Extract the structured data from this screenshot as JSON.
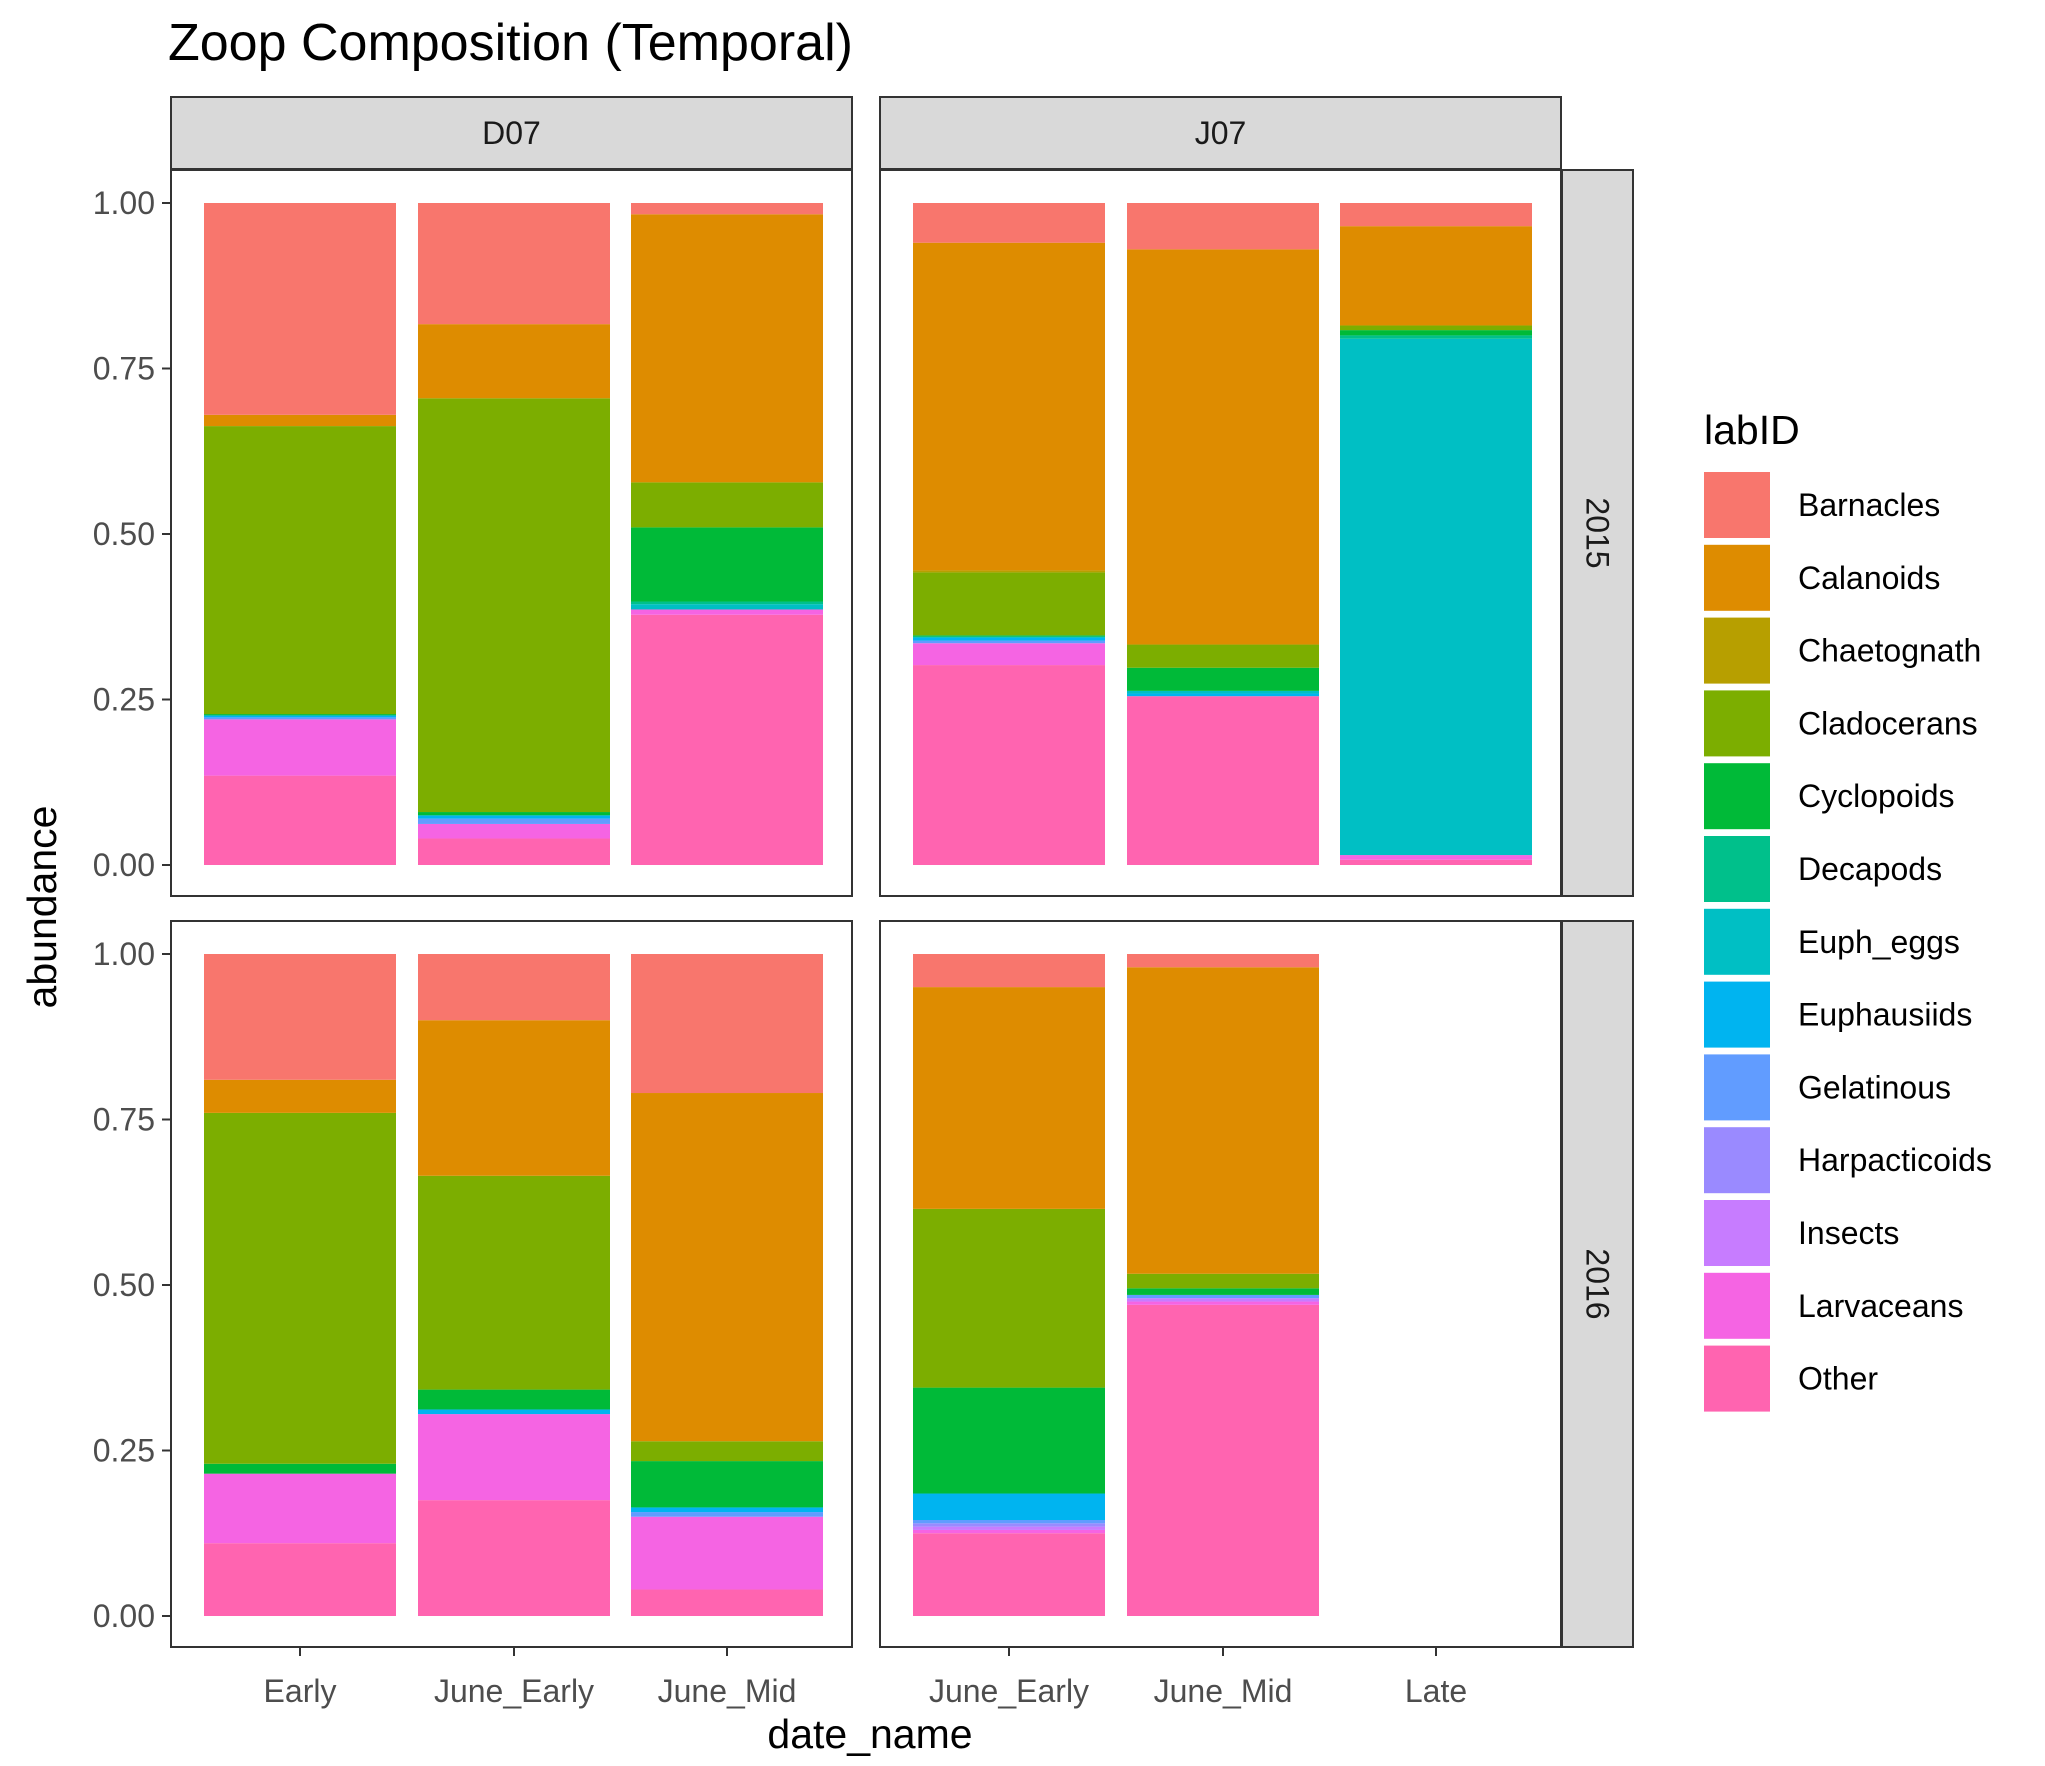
{
  "chart_data": {
    "type": "bar",
    "stacked": true,
    "title": "Zoop Composition (Temporal)",
    "xlabel": "date_name",
    "ylabel": "abundance",
    "ylim": [
      0,
      1
    ],
    "yticks": [
      "0.00",
      "0.25",
      "0.50",
      "0.75",
      "1.00"
    ],
    "facet_columns": [
      "D07",
      "J07"
    ],
    "facet_rows": [
      "2015",
      "2016"
    ],
    "legend": {
      "title": "labID",
      "position": "right",
      "entries": [
        {
          "name": "Barnacles",
          "color": "#F8766D"
        },
        {
          "name": "Calanoids",
          "color": "#DE8C00"
        },
        {
          "name": "Chaetognath",
          "color": "#B79F00"
        },
        {
          "name": "Cladocerans",
          "color": "#7CAE00"
        },
        {
          "name": "Cyclopoids",
          "color": "#00BA38"
        },
        {
          "name": "Decapods",
          "color": "#00C08B"
        },
        {
          "name": "Euph_eggs",
          "color": "#00BFC4"
        },
        {
          "name": "Euphausiids",
          "color": "#00B4F0"
        },
        {
          "name": "Gelatinous",
          "color": "#619CFF"
        },
        {
          "name": "Harpacticoids",
          "color": "#9A8AFF"
        },
        {
          "name": "Insects",
          "color": "#C77CFF"
        },
        {
          "name": "Larvaceans",
          "color": "#F564E3"
        },
        {
          "name": "Other",
          "color": "#FF64B0"
        }
      ]
    },
    "panels": [
      {
        "column": "D07",
        "row": "2015",
        "categories": [
          "Early",
          "June_Early",
          "June_Mid"
        ],
        "bars": [
          {
            "category": "Early",
            "segments": [
              {
                "name": "Other",
                "value": 0.135
              },
              {
                "name": "Larvaceans",
                "value": 0.085
              },
              {
                "name": "Gelatinous",
                "value": 0.003
              },
              {
                "name": "Euphausiids",
                "value": 0.003
              },
              {
                "name": "Cyclopoids",
                "value": 0.002
              },
              {
                "name": "Cladocerans",
                "value": 0.435
              },
              {
                "name": "Calanoids",
                "value": 0.017
              },
              {
                "name": "Barnacles",
                "value": 0.32
              }
            ]
          },
          {
            "category": "June_Early",
            "segments": [
              {
                "name": "Other",
                "value": 0.04
              },
              {
                "name": "Larvaceans",
                "value": 0.022
              },
              {
                "name": "Gelatinous",
                "value": 0.008
              },
              {
                "name": "Euphausiids",
                "value": 0.005
              },
              {
                "name": "Cyclopoids",
                "value": 0.005
              },
              {
                "name": "Cladocerans",
                "value": 0.625
              },
              {
                "name": "Calanoids",
                "value": 0.112
              },
              {
                "name": "Barnacles",
                "value": 0.183
              }
            ]
          },
          {
            "category": "June_Mid",
            "segments": [
              {
                "name": "Other",
                "value": 0.378
              },
              {
                "name": "Larvaceans",
                "value": 0.008
              },
              {
                "name": "Euph_eggs",
                "value": 0.008
              },
              {
                "name": "Decapods",
                "value": 0.004
              },
              {
                "name": "Cyclopoids",
                "value": 0.112
              },
              {
                "name": "Cladocerans",
                "value": 0.068
              },
              {
                "name": "Calanoids",
                "value": 0.405
              },
              {
                "name": "Barnacles",
                "value": 0.017
              }
            ]
          }
        ]
      },
      {
        "column": "J07",
        "row": "2015",
        "categories": [
          "June_Early",
          "June_Mid",
          "Late"
        ],
        "bars": [
          {
            "category": "June_Early",
            "segments": [
              {
                "name": "Other",
                "value": 0.302
              },
              {
                "name": "Larvaceans",
                "value": 0.033
              },
              {
                "name": "Gelatinous",
                "value": 0.004
              },
              {
                "name": "Euphausiids",
                "value": 0.004
              },
              {
                "name": "Euph_eggs",
                "value": 0.002
              },
              {
                "name": "Cyclopoids",
                "value": 0.002
              },
              {
                "name": "Cladocerans",
                "value": 0.095
              },
              {
                "name": "Chaetognath",
                "value": 0.003
              },
              {
                "name": "Calanoids",
                "value": 0.495
              },
              {
                "name": "Barnacles",
                "value": 0.06
              }
            ]
          },
          {
            "category": "June_Mid",
            "segments": [
              {
                "name": "Other",
                "value": 0.255
              },
              {
                "name": "Euphausiids",
                "value": 0.004
              },
              {
                "name": "Euph_eggs",
                "value": 0.004
              },
              {
                "name": "Cyclopoids",
                "value": 0.035
              },
              {
                "name": "Cladocerans",
                "value": 0.035
              },
              {
                "name": "Calanoids",
                "value": 0.597
              },
              {
                "name": "Barnacles",
                "value": 0.07
              }
            ]
          },
          {
            "category": "Late",
            "segments": [
              {
                "name": "Other",
                "value": 0.008
              },
              {
                "name": "Larvaceans",
                "value": 0.007
              },
              {
                "name": "Euph_eggs",
                "value": 0.78
              },
              {
                "name": "Decapods",
                "value": 0.005
              },
              {
                "name": "Cyclopoids",
                "value": 0.008
              },
              {
                "name": "Cladocerans",
                "value": 0.007
              },
              {
                "name": "Calanoids",
                "value": 0.15
              },
              {
                "name": "Barnacles",
                "value": 0.035
              }
            ]
          }
        ]
      },
      {
        "column": "D07",
        "row": "2016",
        "categories": [
          "Early",
          "June_Early",
          "June_Mid"
        ],
        "bars": [
          {
            "category": "Early",
            "segments": [
              {
                "name": "Other",
                "value": 0.11
              },
              {
                "name": "Larvaceans",
                "value": 0.105
              },
              {
                "name": "Cyclopoids",
                "value": 0.015
              },
              {
                "name": "Cladocerans",
                "value": 0.53
              },
              {
                "name": "Calanoids",
                "value": 0.05
              },
              {
                "name": "Barnacles",
                "value": 0.19
              }
            ]
          },
          {
            "category": "June_Early",
            "segments": [
              {
                "name": "Other",
                "value": 0.175
              },
              {
                "name": "Larvaceans",
                "value": 0.13
              },
              {
                "name": "Euphausiids",
                "value": 0.007
              },
              {
                "name": "Cyclopoids",
                "value": 0.03
              },
              {
                "name": "Cladocerans",
                "value": 0.323
              },
              {
                "name": "Calanoids",
                "value": 0.235
              },
              {
                "name": "Barnacles",
                "value": 0.1
              }
            ]
          },
          {
            "category": "June_Mid",
            "segments": [
              {
                "name": "Other",
                "value": 0.04
              },
              {
                "name": "Larvaceans",
                "value": 0.11
              },
              {
                "name": "Gelatinous",
                "value": 0.007
              },
              {
                "name": "Euphausiids",
                "value": 0.007
              },
              {
                "name": "Cyclopoids",
                "value": 0.07
              },
              {
                "name": "Cladocerans",
                "value": 0.03
              },
              {
                "name": "Calanoids",
                "value": 0.526
              },
              {
                "name": "Barnacles",
                "value": 0.21
              }
            ]
          }
        ]
      },
      {
        "column": "J07",
        "row": "2016",
        "categories": [
          "June_Early",
          "June_Mid",
          "Late"
        ],
        "bars": [
          {
            "category": "June_Early",
            "segments": [
              {
                "name": "Other",
                "value": 0.125
              },
              {
                "name": "Larvaceans",
                "value": 0.005
              },
              {
                "name": "Insects",
                "value": 0.005
              },
              {
                "name": "Harpacticoids",
                "value": 0.005
              },
              {
                "name": "Gelatinous",
                "value": 0.005
              },
              {
                "name": "Euphausiids",
                "value": 0.04
              },
              {
                "name": "Cyclopoids",
                "value": 0.16
              },
              {
                "name": "Cladocerans",
                "value": 0.27
              },
              {
                "name": "Calanoids",
                "value": 0.335
              },
              {
                "name": "Barnacles",
                "value": 0.05
              }
            ]
          },
          {
            "category": "June_Mid",
            "segments": [
              {
                "name": "Other",
                "value": 0.47
              },
              {
                "name": "Larvaceans",
                "value": 0.005
              },
              {
                "name": "Insects",
                "value": 0.005
              },
              {
                "name": "Gelatinous",
                "value": 0.005
              },
              {
                "name": "Cyclopoids",
                "value": 0.01
              },
              {
                "name": "Cladocerans",
                "value": 0.022
              },
              {
                "name": "Calanoids",
                "value": 0.463
              },
              {
                "name": "Barnacles",
                "value": 0.02
              }
            ]
          },
          {
            "category": "Late",
            "segments": []
          }
        ]
      }
    ]
  }
}
